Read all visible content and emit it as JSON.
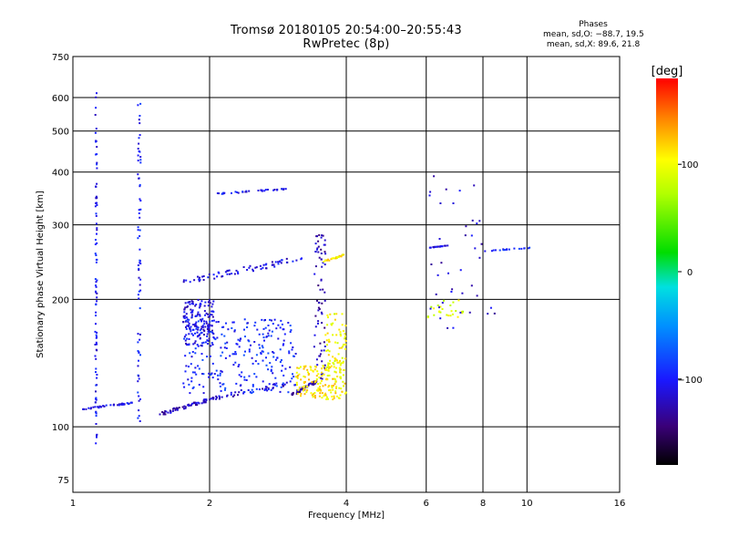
{
  "header": {
    "title_line1": "Tromsø 20180105 20:54:00–20:55:43",
    "title_line2": "RwPretec (8p)",
    "stats_title": "Phases",
    "stats_o": "mean, sd,O: −88.7, 19.5",
    "stats_x": "mean, sd,X:  89.6, 21.8"
  },
  "colorbar": {
    "label": "[deg]",
    "ticks": [
      {
        "label": "100",
        "value": 100
      },
      {
        "label": "0",
        "value": 0
      },
      {
        "label": "−100",
        "value": -100
      }
    ],
    "range": [
      -180,
      180
    ]
  },
  "chart_data": {
    "type": "scatter",
    "title": "Tromsø 20180105 20:54:00–20:55:43",
    "subtitle": "RwPretec (8p)",
    "xlabel": "Frequency [MHz]",
    "ylabel": "Stationary phase Virtual Height [km]",
    "x_scale": "log",
    "y_scale": "log",
    "xlim": [
      1,
      16
    ],
    "ylim": [
      70,
      750
    ],
    "x_ticks": [
      {
        "label": "1",
        "value": 1
      },
      {
        "label": "2",
        "value": 2
      },
      {
        "label": "4",
        "value": 4
      },
      {
        "label": "6",
        "value": 6
      },
      {
        "label": "8",
        "value": 8
      },
      {
        "label": "10",
        "value": 10
      },
      {
        "label": "16",
        "value": 16
      }
    ],
    "y_ticks": [
      {
        "label": "750",
        "value": 750
      },
      {
        "label": "600",
        "value": 600
      },
      {
        "label": "500",
        "value": 500
      },
      {
        "label": "400",
        "value": 400
      },
      {
        "label": "300",
        "value": 300
      },
      {
        "label": "200",
        "value": 200
      },
      {
        "label": "100",
        "value": 100
      },
      {
        "label": "75",
        "value": 75
      }
    ],
    "grid": true,
    "grid_x": [
      2,
      4,
      6,
      8,
      10
    ],
    "grid_y": [
      100,
      200,
      300,
      400,
      500,
      600
    ],
    "color_scale": "phase [deg], -180 to 180, rainbow",
    "clusters": [
      {
        "x": [
          1.12,
          1.13
        ],
        "y": [
          90,
          620
        ],
        "phase": -105,
        "count": 90,
        "kind": "vline"
      },
      {
        "x": [
          1.39,
          1.41
        ],
        "y": [
          100,
          620
        ],
        "phase": -100,
        "count": 70,
        "kind": "vline"
      },
      {
        "x": [
          1.05,
          1.35
        ],
        "y": [
          110,
          114
        ],
        "phase": -110,
        "count": 40,
        "kind": "trace"
      },
      {
        "x": [
          1.55,
          2.0
        ],
        "y": [
          107,
          116
        ],
        "phase": -120,
        "count": 60,
        "kind": "trace"
      },
      {
        "x": [
          2.0,
          3.1
        ],
        "y": [
          116,
          128
        ],
        "phase": -115,
        "count": 40,
        "kind": "trace"
      },
      {
        "x": [
          1.75,
          2.05
        ],
        "y": [
          155,
          200
        ],
        "phase": -110,
        "count": 160,
        "kind": "blob"
      },
      {
        "x": [
          1.75,
          3.2
        ],
        "y": [
          220,
          250
        ],
        "phase": -110,
        "count": 70,
        "kind": "trace"
      },
      {
        "x": [
          2.05,
          2.95
        ],
        "y": [
          355,
          365
        ],
        "phase": -105,
        "count": 35,
        "kind": "trace"
      },
      {
        "x": [
          1.75,
          3.1
        ],
        "y": [
          120,
          180
        ],
        "phase": -95,
        "count": 260,
        "kind": "blob"
      },
      {
        "x": [
          3.0,
          3.45
        ],
        "y": [
          118,
          128
        ],
        "phase": -130,
        "count": 45,
        "kind": "trace"
      },
      {
        "x": [
          3.4,
          3.6
        ],
        "y": [
          128,
          290
        ],
        "phase": -125,
        "count": 70,
        "kind": "vline"
      },
      {
        "x": [
          3.1,
          4.0
        ],
        "y": [
          116,
          140
        ],
        "phase": 110,
        "count": 150,
        "kind": "blob"
      },
      {
        "x": [
          3.6,
          4.0
        ],
        "y": [
          130,
          185
        ],
        "phase": 100,
        "count": 80,
        "kind": "blob"
      },
      {
        "x": [
          3.55,
          3.95
        ],
        "y": [
          245,
          255
        ],
        "phase": 110,
        "count": 25,
        "kind": "trace"
      },
      {
        "x": [
          6.1,
          6.7
        ],
        "y": [
          265,
          268
        ],
        "phase": -110,
        "count": 20,
        "kind": "trace"
      },
      {
        "x": [
          8.0,
          10.2
        ],
        "y": [
          260,
          265
        ],
        "phase": -100,
        "count": 18,
        "kind": "trace"
      },
      {
        "x": [
          6.0,
          7.3
        ],
        "y": [
          180,
          200
        ],
        "phase": 90,
        "count": 25,
        "kind": "blob"
      },
      {
        "x": [
          6.0,
          8.5
        ],
        "y": [
          170,
          400
        ],
        "phase": -115,
        "count": 40,
        "kind": "blob"
      }
    ]
  }
}
